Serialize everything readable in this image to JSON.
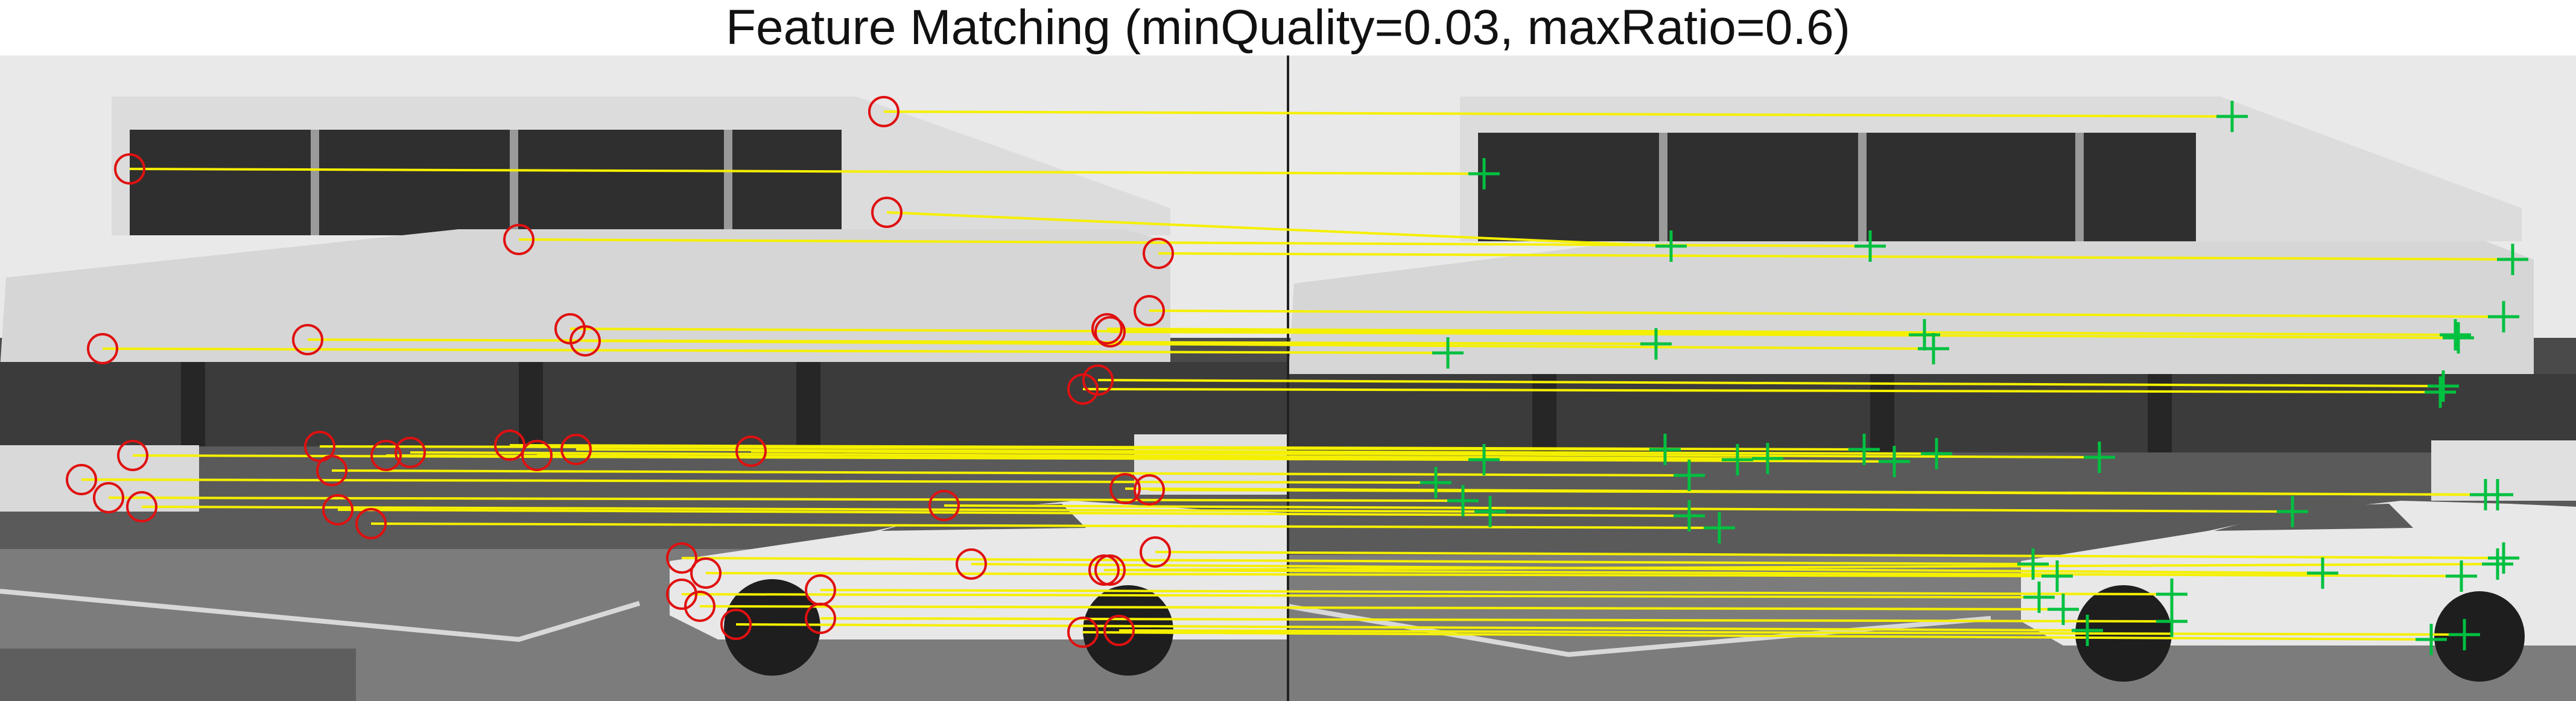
{
  "figure": {
    "title": "Feature Matching (minQuality=0.03, maxRatio=0.6)"
  },
  "colors": {
    "match_line": "#f5f000",
    "left_marker": "#e01010",
    "right_marker": "#00c040",
    "sky": "#ececec",
    "facade_white": "#dcdcdc",
    "glass": "#303030",
    "wall_shadow": "#3a3a3a",
    "road": "#7f7f7f",
    "car_white": "#e6e6e6",
    "background": "#ffffff"
  },
  "scene": {
    "left_frame": "left camera image with red circle markers",
    "right_frame": "right camera image with green plus markers"
  }
}
